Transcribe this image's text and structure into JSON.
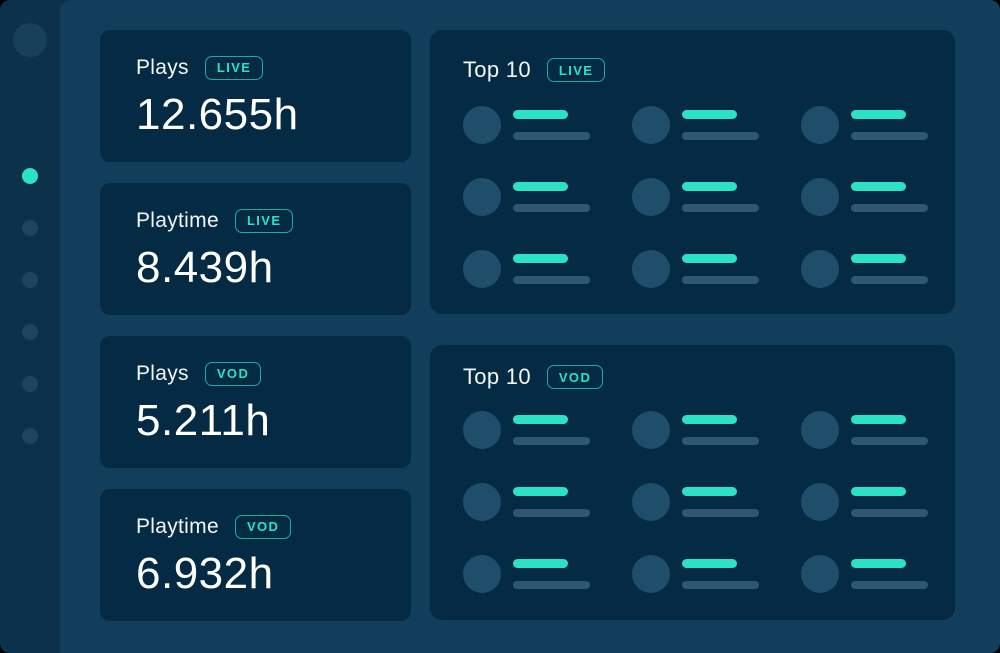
{
  "colors": {
    "accent": "#2BE3C4",
    "sidebar_bg": "#0B314B",
    "main_bg": "#123E5B",
    "card_bg": "#052B44",
    "avatar_fill": "#1F4E6A",
    "muted_bar": "#2E5770"
  },
  "sidebar": {
    "nav_dots": [
      {
        "active": true
      },
      {
        "active": false
      },
      {
        "active": false
      },
      {
        "active": false
      },
      {
        "active": false
      },
      {
        "active": false
      }
    ]
  },
  "stat_cards": [
    {
      "label": "Plays",
      "badge": "LIVE",
      "value": "12.655h"
    },
    {
      "label": "Playtime",
      "badge": "LIVE",
      "value": "8.439h"
    },
    {
      "label": "Plays",
      "badge": "VOD",
      "value": "5.211h"
    },
    {
      "label": "Playtime",
      "badge": "VOD",
      "value": "6.932h"
    }
  ],
  "top_lists": [
    {
      "title": "Top 10",
      "badge": "LIVE",
      "placeholder_rows": 3,
      "placeholder_cols": 3
    },
    {
      "title": "Top 10",
      "badge": "VOD",
      "placeholder_rows": 3,
      "placeholder_cols": 3
    }
  ]
}
